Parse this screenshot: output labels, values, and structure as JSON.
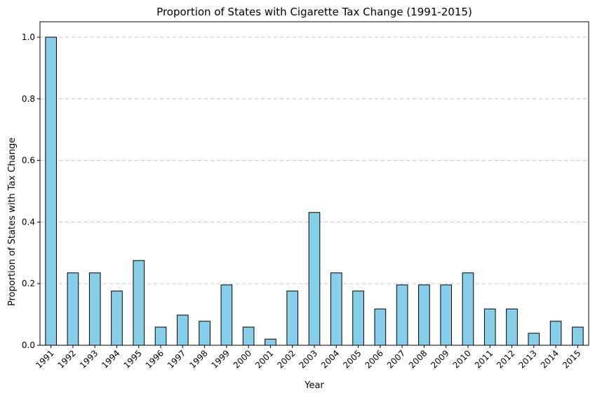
{
  "chart_data": {
    "type": "bar",
    "title": "Proportion of States with Cigarette Tax Change (1991-2015)",
    "xlabel": "Year",
    "ylabel": "Proportion of States with Tax Change",
    "categories": [
      "1991",
      "1992",
      "1993",
      "1994",
      "1995",
      "1996",
      "1997",
      "1998",
      "1999",
      "2000",
      "2001",
      "2002",
      "2003",
      "2004",
      "2005",
      "2006",
      "2007",
      "2008",
      "2009",
      "2010",
      "2011",
      "2012",
      "2013",
      "2014",
      "2015"
    ],
    "values": [
      1.0,
      0.235,
      0.235,
      0.176,
      0.275,
      0.059,
      0.098,
      0.078,
      0.196,
      0.059,
      0.02,
      0.176,
      0.431,
      0.235,
      0.176,
      0.118,
      0.196,
      0.196,
      0.196,
      0.235,
      0.118,
      0.118,
      0.039,
      0.078,
      0.059
    ],
    "yticks": [
      "0.0",
      "0.2",
      "0.4",
      "0.6",
      "0.8",
      "1.0"
    ],
    "ylim": [
      0,
      1.05
    ],
    "grid": "horizontal dashed",
    "colors": {
      "bar_fill": "#87ceeb",
      "bar_edge": "#000000",
      "grid": "#c0c0c0"
    }
  }
}
